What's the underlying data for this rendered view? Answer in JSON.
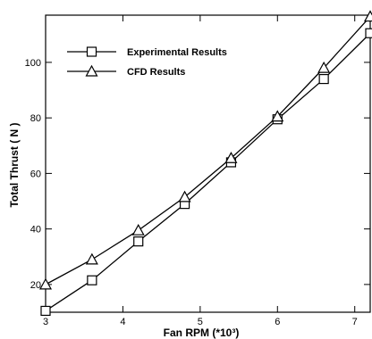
{
  "chart_data": {
    "type": "line",
    "xlabel": "Fan RPM (*10³)",
    "ylabel": "Total Thrust ( N )",
    "xlim": [
      3,
      7.2
    ],
    "ylim": [
      10,
      117
    ],
    "xticks": [
      3,
      4,
      5,
      6,
      7
    ],
    "yticks": [
      20,
      40,
      60,
      80,
      100
    ],
    "grid": false,
    "legend_position": "top-left",
    "series": [
      {
        "name": "Experimental Results",
        "marker": "square",
        "color": "#000000",
        "x": [
          3.0,
          3.6,
          4.2,
          4.8,
          5.4,
          6.0,
          6.6,
          7.2
        ],
        "y": [
          10.5,
          21.5,
          35.5,
          49.0,
          64.0,
          79.5,
          94.0,
          110.5
        ]
      },
      {
        "name": "CFD Results",
        "marker": "triangle",
        "color": "#000000",
        "x": [
          3.0,
          3.6,
          4.2,
          4.8,
          5.4,
          6.0,
          6.6,
          7.2
        ],
        "y": [
          20.0,
          29.0,
          39.5,
          51.5,
          65.5,
          80.5,
          98.0,
          116.5
        ]
      }
    ]
  }
}
